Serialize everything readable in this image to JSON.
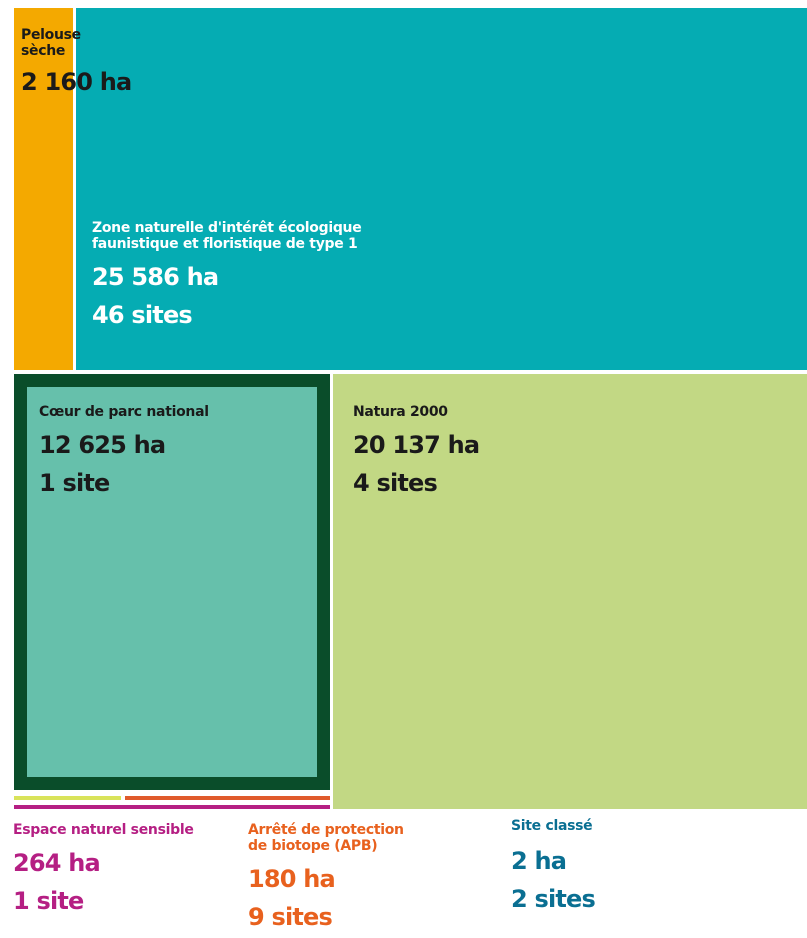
{
  "chart_data": {
    "type": "treemap",
    "title": "",
    "items": [
      {
        "name": "Pelouse sèche",
        "area_label": "2 160 ha",
        "area_ha": 2160,
        "color": "#f4a900"
      },
      {
        "name": "Zone naturelle d'intérêt écologique faunistique et floristique de type 1",
        "area_label": "25 586 ha",
        "sites_label": "46 sites",
        "area_ha": 25586,
        "sites": 46,
        "color": "#05acb3"
      },
      {
        "name": "Cœur de parc national",
        "area_label": "12 625 ha",
        "sites_label": "1 site",
        "area_ha": 12625,
        "sites": 1,
        "color": "#66c0ab",
        "border_color": "#0a4d2a"
      },
      {
        "name": "Natura 2000",
        "area_label": "20 137 ha",
        "sites_label": "4 sites",
        "area_ha": 20137,
        "sites": 4,
        "color": "#c2d884"
      },
      {
        "name": "Espace naturel sensible",
        "area_label": "264 ha",
        "sites_label": "1 site",
        "area_ha": 264,
        "sites": 1,
        "color": "#b51f83"
      },
      {
        "name": "Arrêté de protection de biotope (APB)",
        "area_label": "180 ha",
        "sites_label": "9 sites",
        "area_ha": 180,
        "sites": 9,
        "color": "#e8611e"
      },
      {
        "name": "Site classé",
        "area_label": "2 ha",
        "sites_label": "2 sites",
        "area_ha": 2,
        "sites": 2,
        "color": "#0a6f92"
      }
    ],
    "strip_colors": [
      "#d9e35a",
      "#e05a2b"
    ]
  }
}
